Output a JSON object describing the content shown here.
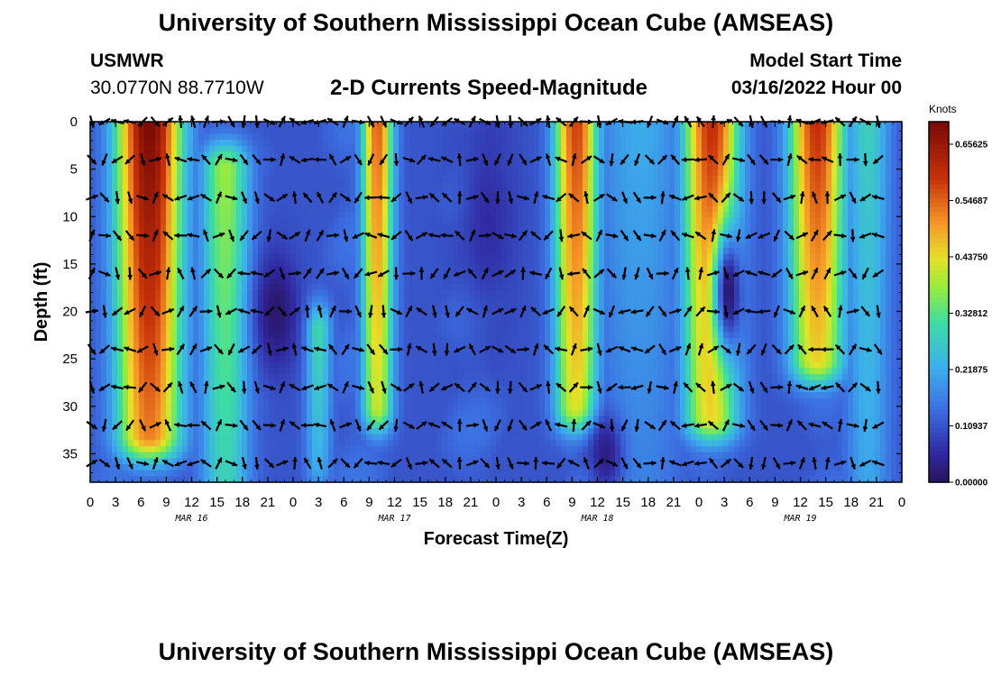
{
  "header": {
    "title": "University of Southern Mississippi Ocean Cube (AMSEAS)",
    "station_id": "USMWR",
    "station_coords": "30.0770N  88.7710W",
    "chart_title": "2-D Currents Speed-Magnitude",
    "start_label": "Model Start Time",
    "start_value": "03/16/2022 Hour 00"
  },
  "footer": {
    "title": "University of Southern Mississippi Ocean Cube (AMSEAS)"
  },
  "chart_data": {
    "type": "heatmap",
    "title": "2-D Currents Speed-Magnitude",
    "xlabel": "Forecast Time(Z)",
    "ylabel": "Depth (ft)",
    "x_unit": "forecast hour",
    "xlim": [
      0,
      96
    ],
    "ylim": [
      0,
      38
    ],
    "y_inverted": true,
    "x_ticks": [
      0,
      3,
      6,
      9,
      12,
      15,
      18,
      21,
      24,
      27,
      30,
      33,
      36,
      39,
      42,
      45,
      48,
      51,
      54,
      57,
      60,
      63,
      66,
      69,
      72,
      75,
      78,
      81,
      84,
      87,
      90,
      93,
      96
    ],
    "x_tick_labels": [
      "0",
      "3",
      "6",
      "9",
      "12",
      "15",
      "18",
      "21",
      "0",
      "3",
      "6",
      "9",
      "12",
      "15",
      "18",
      "21",
      "0",
      "3",
      "6",
      "9",
      "12",
      "15",
      "18",
      "21",
      "0",
      "3",
      "6",
      "9",
      "12",
      "15",
      "18",
      "21",
      "0"
    ],
    "date_labels": [
      {
        "hour": 12,
        "label": "MAR 16"
      },
      {
        "hour": 36,
        "label": "MAR 17"
      },
      {
        "hour": 60,
        "label": "MAR 18"
      },
      {
        "hour": 84,
        "label": "MAR 19"
      }
    ],
    "y_ticks": [
      0,
      5,
      10,
      15,
      20,
      25,
      30,
      35
    ],
    "y_tick_labels": [
      "0",
      "5",
      "10",
      "15",
      "20",
      "25",
      "30",
      "35"
    ],
    "colorbar": {
      "label": "Knots",
      "min": 0.0,
      "max": 0.7,
      "tick_values": [
        0.65625,
        0.54687,
        0.4375,
        0.32812,
        0.21875,
        0.10937,
        0.0
      ],
      "tick_labels": [
        "0.65625",
        "0.54687",
        "0.43750",
        "0.32812",
        "0.21875",
        "0.10937",
        "0.00000"
      ]
    },
    "vector_depths": [
      0,
      4,
      8,
      12,
      16,
      20,
      24,
      28,
      32,
      36
    ],
    "speed_features": [
      {
        "center_hour": 7.0,
        "half_width_hours": 3.8,
        "top_depth": 0,
        "bottom_depth": 33,
        "peak_knots": 0.7
      },
      {
        "center_hour": 16.0,
        "half_width_hours": 2.8,
        "top_depth": 5,
        "bottom_depth": 38,
        "peak_knots": 0.38
      },
      {
        "center_hour": 10.0,
        "half_width_hours": 2.0,
        "top_depth": 0,
        "bottom_depth": 26,
        "peak_knots": 0.3
      },
      {
        "center_hour": 34.0,
        "half_width_hours": 1.8,
        "top_depth": 0,
        "bottom_depth": 30,
        "peak_knots": 0.55
      },
      {
        "center_hour": 27.0,
        "half_width_hours": 1.5,
        "top_depth": 22,
        "bottom_depth": 36,
        "peak_knots": 0.3
      },
      {
        "center_hour": 57.0,
        "half_width_hours": 1.5,
        "top_depth": 22,
        "bottom_depth": 32,
        "peak_knots": 0.26
      },
      {
        "center_hour": 57.5,
        "half_width_hours": 2.5,
        "top_depth": 0,
        "bottom_depth": 30,
        "peak_knots": 0.58
      },
      {
        "center_hour": 73.5,
        "half_width_hours": 3.2,
        "top_depth": 0,
        "bottom_depth": 31,
        "peak_knots": 0.6
      },
      {
        "center_hour": 86.0,
        "half_width_hours": 3.2,
        "top_depth": 0,
        "bottom_depth": 25,
        "peak_knots": 0.6
      },
      {
        "center_hour": 92.0,
        "half_width_hours": 2.5,
        "top_depth": 0,
        "bottom_depth": 38,
        "peak_knots": 0.28
      },
      {
        "center_hour": 65.0,
        "half_width_hours": 5.0,
        "top_depth": 0,
        "bottom_depth": 38,
        "peak_knots": 0.22
      }
    ],
    "slow_features": [
      {
        "center_hour": 22.0,
        "center_depth": 20,
        "radius_hours": 2.5,
        "radius_depth": 6,
        "min_knots": 0.01
      },
      {
        "center_hour": 75.5,
        "center_depth": 18,
        "radius_hours": 1.8,
        "radius_depth": 7,
        "min_knots": 0.01
      },
      {
        "center_hour": 61.0,
        "center_depth": 35,
        "radius_hours": 2.0,
        "radius_depth": 4,
        "min_knots": 0.03
      },
      {
        "center_hour": 47.0,
        "center_depth": 10,
        "radius_hours": 3.5,
        "radius_depth": 12,
        "min_knots": 0.06
      }
    ]
  },
  "colors": {
    "plot_background": "#ffffff",
    "arrow": "#000000"
  }
}
